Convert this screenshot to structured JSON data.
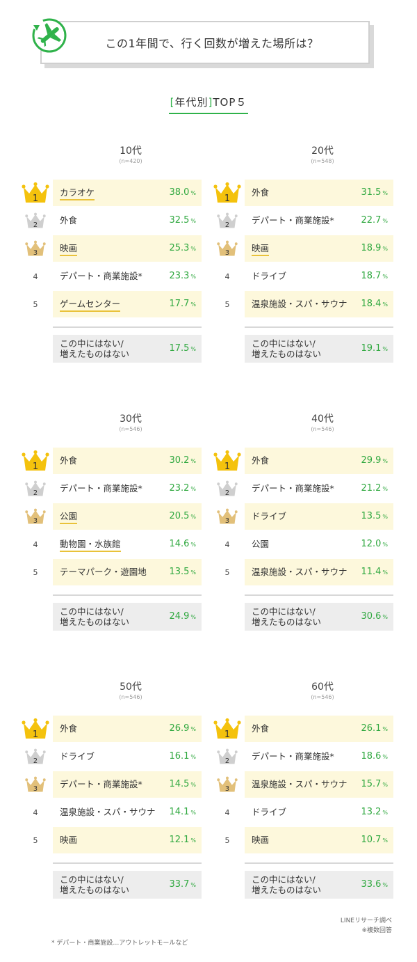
{
  "header": {
    "title": "この1年間で、行く回数が増えた場所は？"
  },
  "subtitle": {
    "open": "[",
    "text": "年代別",
    "close": "]",
    "suffix": "TOP５"
  },
  "colors": {
    "accent": "#2fb24a",
    "value": "#2fa83f",
    "highlight": "#fdf8dc",
    "underline": "#e9c23a",
    "gold": "#f4c20d",
    "silver": "#cfcfcf",
    "bronze": "#e2c07a",
    "none_bg": "#ededed"
  },
  "icons": {
    "logo": "airplane-icon",
    "rank1": "gold-crown-icon",
    "rank2": "silver-crown-icon",
    "rank3": "bronze-crown-icon"
  },
  "chart_data": {
    "type": "table",
    "title": "この1年間で、行く回数が増えた場所は？",
    "subtitle": "[年代別]TOP５",
    "unit": "%",
    "groups": [
      {
        "age": "10代",
        "n": "(n=420)",
        "rows": [
          {
            "rank": "1",
            "label": "カラオケ",
            "value": "38.0"
          },
          {
            "rank": "2",
            "label": "外食",
            "value": "32.5"
          },
          {
            "rank": "3",
            "label": "映画",
            "value": "25.3"
          },
          {
            "rank": "4",
            "label": "デパート・商業施設*",
            "value": "23.3"
          },
          {
            "rank": "5",
            "label": "ゲームセンター",
            "value": "17.7"
          }
        ],
        "none": {
          "line1": "この中にはない/",
          "line2": "増えたものはない",
          "value": "17.5"
        }
      },
      {
        "age": "20代",
        "n": "(n=548)",
        "rows": [
          {
            "rank": "1",
            "label": "外食",
            "value": "31.5"
          },
          {
            "rank": "2",
            "label": "デパート・商業施設*",
            "value": "22.7"
          },
          {
            "rank": "3",
            "label": "映画",
            "value": "18.9"
          },
          {
            "rank": "4",
            "label": "ドライブ",
            "value": "18.7"
          },
          {
            "rank": "5",
            "label": "温泉施設・スパ・サウナ",
            "value": "18.4"
          }
        ],
        "none": {
          "line1": "この中にはない/",
          "line2": "増えたものはない",
          "value": "19.1"
        }
      },
      {
        "age": "30代",
        "n": "(n=546)",
        "rows": [
          {
            "rank": "1",
            "label": "外食",
            "value": "30.2"
          },
          {
            "rank": "2",
            "label": "デパート・商業施設*",
            "value": "23.2"
          },
          {
            "rank": "3",
            "label": "公園",
            "value": "20.5"
          },
          {
            "rank": "4",
            "label": "動物園・水族館",
            "value": "14.6"
          },
          {
            "rank": "5",
            "label": "テーマパーク・遊園地",
            "value": "13.5"
          }
        ],
        "none": {
          "line1": "この中にはない/",
          "line2": "増えたものはない",
          "value": "24.9"
        }
      },
      {
        "age": "40代",
        "n": "(n=546)",
        "rows": [
          {
            "rank": "1",
            "label": "外食",
            "value": "29.9"
          },
          {
            "rank": "2",
            "label": "デパート・商業施設*",
            "value": "21.2"
          },
          {
            "rank": "3",
            "label": "ドライブ",
            "value": "13.5"
          },
          {
            "rank": "4",
            "label": "公園",
            "value": "12.0"
          },
          {
            "rank": "5",
            "label": "温泉施設・スパ・サウナ",
            "value": "11.4"
          }
        ],
        "none": {
          "line1": "この中にはない/",
          "line2": "増えたものはない",
          "value": "30.6"
        }
      },
      {
        "age": "50代",
        "n": "(n=546)",
        "rows": [
          {
            "rank": "1",
            "label": "外食",
            "value": "26.9"
          },
          {
            "rank": "2",
            "label": "ドライブ",
            "value": "16.1"
          },
          {
            "rank": "3",
            "label": "デパート・商業施設*",
            "value": "14.5"
          },
          {
            "rank": "4",
            "label": "温泉施設・スパ・サウナ",
            "value": "14.1"
          },
          {
            "rank": "5",
            "label": "映画",
            "value": "12.1"
          }
        ],
        "none": {
          "line1": "この中にはない/",
          "line2": "増えたものはない",
          "value": "33.7"
        }
      },
      {
        "age": "60代",
        "n": "(n=546)",
        "rows": [
          {
            "rank": "1",
            "label": "外食",
            "value": "26.1"
          },
          {
            "rank": "2",
            "label": "デパート・商業施設*",
            "value": "18.6"
          },
          {
            "rank": "3",
            "label": "温泉施設・スパ・サウナ",
            "value": "15.7"
          },
          {
            "rank": "4",
            "label": "ドライブ",
            "value": "13.2"
          },
          {
            "rank": "5",
            "label": "映画",
            "value": "10.7"
          }
        ],
        "none": {
          "line1": "この中にはない/",
          "line2": "増えたものはない",
          "value": "33.6"
        }
      }
    ]
  },
  "credit": {
    "line1": "LINEリサーチ調べ",
    "line2": "※複数回答"
  },
  "footnote": "* デパート・商業施設…アウトレットモールなど"
}
